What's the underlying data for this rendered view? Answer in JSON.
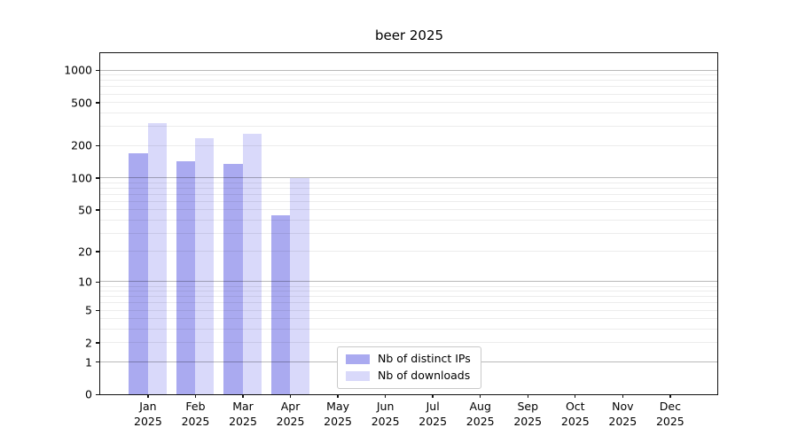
{
  "chart_data": {
    "type": "bar",
    "title": "beer 2025",
    "categories": [
      "Jan",
      "Feb",
      "Mar",
      "Apr",
      "May",
      "Jun",
      "Jul",
      "Aug",
      "Sep",
      "Oct",
      "Nov",
      "Dec"
    ],
    "x_tick_second_line": "2025",
    "series": [
      {
        "name": "Nb of distinct IPs",
        "color": "#aaaaf0",
        "values": [
          170,
          143,
          135,
          44,
          0,
          0,
          0,
          0,
          0,
          0,
          0,
          0
        ]
      },
      {
        "name": "Nb of downloads",
        "color": "#d9d9fa",
        "values": [
          320,
          232,
          255,
          100,
          0,
          0,
          0,
          0,
          0,
          0,
          0,
          0
        ]
      }
    ],
    "y_ticks": [
      0,
      1,
      2,
      5,
      10,
      20,
      50,
      100,
      200,
      500,
      1000
    ],
    "y_scale": "log10(1+v)",
    "ylim": [
      0,
      1430
    ],
    "grid": true,
    "grid_major_values": [
      1,
      10,
      100,
      1000
    ],
    "legend_position": "lower center",
    "background_color": "#ffffff",
    "axis_color": "#111111"
  }
}
